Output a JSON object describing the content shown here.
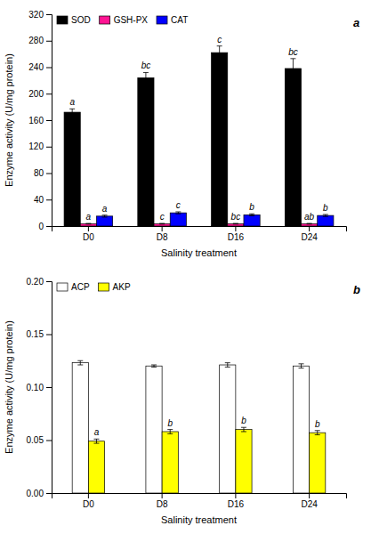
{
  "chart_data": [
    {
      "type": "bar",
      "title": "a",
      "xlabel": "Salinity treatment",
      "ylabel": "Enzyme activity (U/mg protein)",
      "categories": [
        "D0",
        "D8",
        "D16",
        "D24"
      ],
      "series": [
        {
          "name": "SOD",
          "color": "#000000",
          "values": [
            172,
            224,
            262,
            238
          ],
          "errors": [
            5,
            8,
            10,
            15
          ],
          "annotations": [
            "a",
            "bc",
            "c",
            "bc"
          ]
        },
        {
          "name": "GSH-PX",
          "color": "#FF1493",
          "values": [
            3.5,
            3.5,
            3.5,
            3.5
          ],
          "errors": [
            0.5,
            0.5,
            0.5,
            0.5
          ],
          "annotations": [
            "a",
            "c",
            "bc",
            "ab"
          ]
        },
        {
          "name": "CAT",
          "color": "#0000FF",
          "values": [
            15,
            20,
            17,
            16
          ],
          "errors": [
            1.5,
            1.5,
            1.5,
            1.5
          ],
          "annotations": [
            "a",
            "c",
            "b",
            "b"
          ]
        }
      ],
      "ylim": [
        0,
        320
      ],
      "yticks": [
        0,
        40,
        80,
        120,
        160,
        200,
        240,
        280,
        320
      ],
      "grid": false,
      "legend": "upper left"
    },
    {
      "type": "bar",
      "title": "b",
      "xlabel": "Salinity treatment",
      "ylabel": "Enzyme activity (U/mg protein)",
      "categories": [
        "D0",
        "D8",
        "D16",
        "D24"
      ],
      "series": [
        {
          "name": "ACP",
          "color": "#FFFFFF",
          "values": [
            0.123,
            0.12,
            0.121,
            0.12
          ],
          "errors": [
            0.002,
            0.001,
            0.002,
            0.002
          ]
        },
        {
          "name": "AKP",
          "color": "#FFFF00",
          "values": [
            0.049,
            0.058,
            0.06,
            0.057
          ],
          "errors": [
            0.002,
            0.002,
            0.002,
            0.002
          ],
          "annotations": [
            "a",
            "b",
            "b",
            "b"
          ]
        }
      ],
      "ylim": [
        0.0,
        0.2
      ],
      "yticks": [
        {
          "value": 0.0,
          "label": "0.00"
        },
        0.05,
        {
          "value": 0.1,
          "label": "0.10"
        },
        0.15,
        {
          "value": 0.2,
          "label": "0.20"
        }
      ],
      "grid": false,
      "legend": "upper left"
    }
  ]
}
